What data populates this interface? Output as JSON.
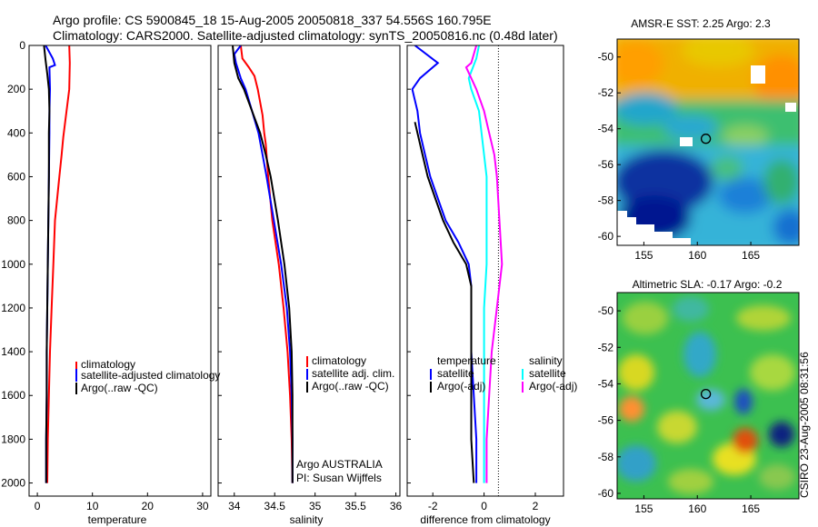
{
  "figure": {
    "title_line1": "Argo profile: CS 5900845_18 15-Aug-2005 20050818_337 54.556S 160.795E",
    "title_line2": "Climatology: CARS2000. Satellite-adjusted climatology: synTS_20050816.nc (0.48d later)",
    "side_label": "CSIRO 23-Aug-2005 08:31:56"
  },
  "chart_data": [
    {
      "type": "line",
      "id": "temperature",
      "xlabel": "temperature",
      "xlim": [
        -1.5,
        31.5
      ],
      "xticks": [
        0,
        10,
        20,
        30
      ],
      "ylim": [
        2060,
        0
      ],
      "yticks": [
        0,
        200,
        400,
        600,
        800,
        1000,
        1200,
        1400,
        1600,
        1800,
        2000
      ],
      "legend": [
        "climatology",
        "satellite-adjusted climatology",
        "Argo(..raw -QC)"
      ],
      "series": [
        {
          "name": "climatology",
          "color": "#ff0000",
          "points": [
            [
              5.8,
              0
            ],
            [
              5.9,
              80
            ],
            [
              5.8,
              200
            ],
            [
              5.3,
              300
            ],
            [
              4.7,
              420
            ],
            [
              4.4,
              500
            ],
            [
              4.0,
              600
            ],
            [
              3.6,
              700
            ],
            [
              3.2,
              800
            ],
            [
              2.9,
              1000
            ],
            [
              2.6,
              1200
            ],
            [
              2.3,
              1400
            ],
            [
              2.1,
              1600
            ],
            [
              1.9,
              1800
            ],
            [
              1.8,
              2000
            ]
          ]
        },
        {
          "name": "satellite-adjusted climatology",
          "color": "#0000ff",
          "points": [
            [
              1.5,
              0
            ],
            [
              2.8,
              60
            ],
            [
              3.2,
              90
            ],
            [
              2.2,
              100
            ],
            [
              2.3,
              200
            ],
            [
              2.2,
              300
            ],
            [
              2.2,
              400
            ],
            [
              2.1,
              600
            ],
            [
              2.0,
              800
            ],
            [
              1.9,
              1000
            ],
            [
              1.8,
              1200
            ],
            [
              1.7,
              1400
            ],
            [
              1.7,
              1600
            ],
            [
              1.6,
              1800
            ],
            [
              1.6,
              2000
            ]
          ]
        },
        {
          "name": "Argo(..raw -QC)",
          "color": "#000000",
          "points": [
            [
              1.2,
              0
            ],
            [
              1.5,
              70
            ],
            [
              1.8,
              130
            ],
            [
              2.1,
              200
            ],
            [
              2.2,
              300
            ],
            [
              2.1,
              400
            ],
            [
              2.1,
              600
            ],
            [
              2.0,
              800
            ],
            [
              1.9,
              1000
            ],
            [
              1.8,
              1200
            ],
            [
              1.7,
              1400
            ],
            [
              1.7,
              1600
            ],
            [
              1.6,
              1800
            ],
            [
              1.6,
              2000
            ]
          ]
        }
      ]
    },
    {
      "type": "line",
      "id": "salinity",
      "xlabel": "salinity",
      "xlim": [
        33.8,
        36.05
      ],
      "xticks": [
        34,
        34.5,
        35,
        35.5,
        36
      ],
      "ylim": [
        2060,
        0
      ],
      "legend": [
        "climatology",
        "satellite adj. clim.",
        "Argo(..raw -QC)"
      ],
      "annotations": [
        "Argo AUSTRALIA",
        "PI: Susan Wijffels"
      ],
      "series": [
        {
          "name": "climatology",
          "color": "#ff0000",
          "points": [
            [
              34.08,
              0
            ],
            [
              34.1,
              60
            ],
            [
              34.18,
              100
            ],
            [
              34.25,
              140
            ],
            [
              34.29,
              200
            ],
            [
              34.35,
              320
            ],
            [
              34.37,
              400
            ],
            [
              34.39,
              450
            ],
            [
              34.4,
              500
            ],
            [
              34.42,
              600
            ],
            [
              34.47,
              800
            ],
            [
              34.55,
              1000
            ],
            [
              34.61,
              1200
            ],
            [
              34.66,
              1400
            ],
            [
              34.69,
              1600
            ],
            [
              34.71,
              1800
            ],
            [
              34.72,
              2000
            ]
          ]
        },
        {
          "name": "satellite adj. clim.",
          "color": "#0000ff",
          "points": [
            [
              34.08,
              0
            ],
            [
              34.0,
              40
            ],
            [
              34.02,
              80
            ],
            [
              34.08,
              150
            ],
            [
              34.14,
              200
            ],
            [
              34.22,
              300
            ],
            [
              34.3,
              400
            ],
            [
              34.35,
              500
            ],
            [
              34.4,
              600
            ],
            [
              34.49,
              800
            ],
            [
              34.58,
              1000
            ],
            [
              34.65,
              1200
            ],
            [
              34.69,
              1400
            ],
            [
              34.71,
              1600
            ],
            [
              34.72,
              1800
            ],
            [
              34.72,
              2000
            ]
          ]
        },
        {
          "name": "Argo(..raw -QC)",
          "color": "#000000",
          "points": [
            [
              33.98,
              0
            ],
            [
              34.0,
              80
            ],
            [
              34.05,
              150
            ],
            [
              34.12,
              200
            ],
            [
              34.22,
              300
            ],
            [
              34.32,
              400
            ],
            [
              34.39,
              500
            ],
            [
              34.45,
              600
            ],
            [
              34.54,
              800
            ],
            [
              34.62,
              1000
            ],
            [
              34.68,
              1200
            ],
            [
              34.71,
              1400
            ],
            [
              34.72,
              1600
            ],
            [
              34.72,
              1800
            ],
            [
              34.72,
              2000
            ]
          ]
        }
      ]
    },
    {
      "type": "line",
      "id": "difference",
      "xlabel": "difference from climatology",
      "xlim": [
        -3,
        3.1
      ],
      "xticks": [
        -2,
        0,
        2
      ],
      "ylim": [
        2060,
        0
      ],
      "legend": [
        "temperature",
        "satellite",
        "Argo(-adj)",
        "salinity",
        "satellite",
        "Argo(-adj)"
      ],
      "series": [
        {
          "name": "temperature satellite",
          "color": "#0000ff",
          "points": [
            [
              -2.7,
              0
            ],
            [
              -1.8,
              80
            ],
            [
              -2.5,
              150
            ],
            [
              -2.8,
              200
            ],
            [
              -2.6,
              300
            ],
            [
              -2.5,
              400
            ],
            [
              -2.3,
              500
            ],
            [
              -2.1,
              600
            ],
            [
              -1.8,
              700
            ],
            [
              -1.5,
              800
            ],
            [
              -1.0,
              900
            ],
            [
              -0.6,
              1000
            ],
            [
              -0.5,
              1100
            ],
            [
              -0.5,
              1200
            ],
            [
              -0.5,
              1400
            ],
            [
              -0.4,
              1600
            ],
            [
              -0.3,
              1800
            ],
            [
              -0.3,
              2000
            ]
          ]
        },
        {
          "name": "temperature Argo(-adj)",
          "color": "#000000",
          "points": [
            [
              -2.7,
              350
            ],
            [
              -2.6,
              400
            ],
            [
              -2.4,
              500
            ],
            [
              -2.2,
              600
            ],
            [
              -1.9,
              700
            ],
            [
              -1.6,
              800
            ],
            [
              -1.2,
              900
            ],
            [
              -0.7,
              1000
            ],
            [
              -0.5,
              1100
            ],
            [
              -0.5,
              1200
            ],
            [
              -0.5,
              1400
            ],
            [
              -0.5,
              1600
            ],
            [
              -0.5,
              1800
            ],
            [
              -0.4,
              2000
            ]
          ]
        },
        {
          "name": "salinity satellite",
          "color": "#00ffff",
          "points": [
            [
              -0.2,
              0
            ],
            [
              -0.3,
              60
            ],
            [
              -0.6,
              150
            ],
            [
              -0.5,
              200
            ],
            [
              -0.2,
              300
            ],
            [
              -0.1,
              400
            ],
            [
              0.0,
              500
            ],
            [
              0.1,
              600
            ],
            [
              0.1,
              800
            ],
            [
              0.1,
              1000
            ],
            [
              0.0,
              1200
            ],
            [
              0.0,
              1400
            ],
            [
              0.0,
              1600
            ],
            [
              0.0,
              1800
            ],
            [
              0.0,
              2000
            ]
          ]
        },
        {
          "name": "salinity Argo(-adj)",
          "color": "#ff00ff",
          "points": [
            [
              -0.3,
              0
            ],
            [
              -0.5,
              80
            ],
            [
              -0.7,
              100
            ],
            [
              -0.5,
              150
            ],
            [
              -0.3,
              200
            ],
            [
              0.0,
              300
            ],
            [
              0.2,
              400
            ],
            [
              0.4,
              500
            ],
            [
              0.5,
              600
            ],
            [
              0.6,
              800
            ],
            [
              0.7,
              1000
            ],
            [
              0.5,
              1200
            ],
            [
              0.3,
              1400
            ],
            [
              0.2,
              1600
            ],
            [
              0.1,
              1800
            ],
            [
              0.1,
              2000
            ]
          ]
        }
      ]
    },
    {
      "type": "heatmap",
      "id": "sst_map",
      "title": "AMSR-E SST: 2.25 Argo: 2.3",
      "xlim": [
        152.5,
        169.5
      ],
      "ylim": [
        -60.5,
        -49
      ],
      "xticks": [
        155,
        160,
        165
      ],
      "yticks": [
        -50,
        -52,
        -54,
        -56,
        -58,
        -60
      ],
      "marker": {
        "lon": 160.795,
        "lat": -54.556
      }
    },
    {
      "type": "heatmap",
      "id": "sla_map",
      "title": "Altimetric SLA: -0.17 Argo: -0.2",
      "xlim": [
        152.5,
        169.5
      ],
      "ylim": [
        -60.3,
        -49
      ],
      "xticks": [
        155,
        160,
        165
      ],
      "yticks": [
        -50,
        -52,
        -54,
        -56,
        -58,
        -60
      ],
      "marker": {
        "lon": 160.795,
        "lat": -54.556
      }
    }
  ]
}
